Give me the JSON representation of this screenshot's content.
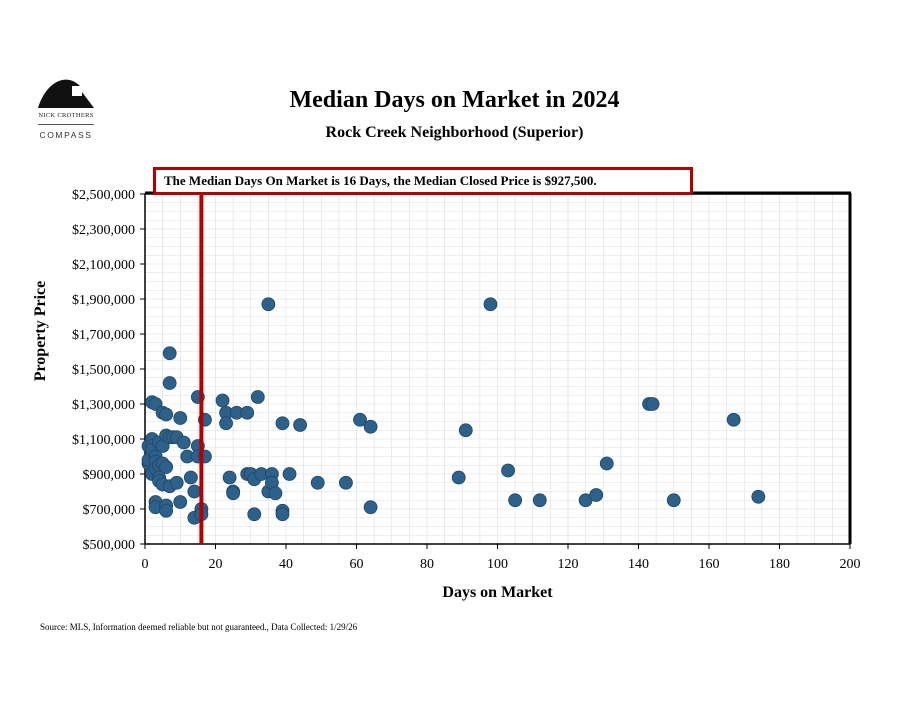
{
  "logo": {
    "name": "NICK CROTHERS",
    "brand": "COMPASS"
  },
  "header": {
    "title": "Median Days on Market in 2024",
    "subtitle": "Rock Creek Neighborhood (Superior)"
  },
  "callout": {
    "text": "The Median Days On Market is 16 Days, the Median Closed Price is $927,500."
  },
  "footer": {
    "source": "Source: MLS, Information deemed reliable but not guaranteed., Data Collected: 1/29/26"
  },
  "colors": {
    "point": "#2e6189",
    "median_line": "#b30000",
    "grid": "#dddddd"
  },
  "chart_data": {
    "type": "scatter",
    "title": "Median Days on Market in 2024",
    "subtitle": "Rock Creek Neighborhood (Superior)",
    "xlabel": "Days on Market",
    "ylabel": "Property Price",
    "xlim": [
      0,
      200
    ],
    "ylim": [
      500000,
      2500000
    ],
    "xticks": [
      0,
      20,
      40,
      60,
      80,
      100,
      120,
      140,
      160,
      180,
      200
    ],
    "yticks": [
      500000,
      700000,
      900000,
      1100000,
      1300000,
      1500000,
      1700000,
      1900000,
      2100000,
      2300000,
      2500000
    ],
    "ytick_labels": [
      "$500,000",
      "$700,000",
      "$900,000",
      "$1,100,000",
      "$1,300,000",
      "$1,500,000",
      "$1,700,000",
      "$1,900,000",
      "$2,100,000",
      "$2,300,000",
      "$2,500,000"
    ],
    "grid": true,
    "median_days": 16,
    "median_price": 927500,
    "points": [
      [
        1,
        960000
      ],
      [
        1,
        1060000
      ],
      [
        1,
        980000
      ],
      [
        2,
        1100000
      ],
      [
        2,
        1060000
      ],
      [
        2,
        1040000
      ],
      [
        2,
        1310000
      ],
      [
        2,
        900000
      ],
      [
        3,
        1300000
      ],
      [
        3,
        1000000
      ],
      [
        3,
        970000
      ],
      [
        3,
        930000
      ],
      [
        3,
        740000
      ],
      [
        3,
        710000
      ],
      [
        4,
        950000
      ],
      [
        4,
        880000
      ],
      [
        4,
        860000
      ],
      [
        4,
        1080000
      ],
      [
        5,
        1250000
      ],
      [
        5,
        1060000
      ],
      [
        5,
        960000
      ],
      [
        5,
        840000
      ],
      [
        6,
        1240000
      ],
      [
        6,
        1120000
      ],
      [
        6,
        940000
      ],
      [
        6,
        720000
      ],
      [
        6,
        690000
      ],
      [
        7,
        1590000
      ],
      [
        7,
        1420000
      ],
      [
        7,
        1110000
      ],
      [
        7,
        830000
      ],
      [
        8,
        1110000
      ],
      [
        9,
        1110000
      ],
      [
        9,
        850000
      ],
      [
        10,
        740000
      ],
      [
        10,
        1220000
      ],
      [
        11,
        1080000
      ],
      [
        12,
        1000000
      ],
      [
        13,
        880000
      ],
      [
        14,
        800000
      ],
      [
        14,
        650000
      ],
      [
        15,
        1340000
      ],
      [
        15,
        1060000
      ],
      [
        15,
        1000000
      ],
      [
        16,
        700000
      ],
      [
        16,
        670000
      ],
      [
        17,
        1210000
      ],
      [
        17,
        1000000
      ],
      [
        22,
        1320000
      ],
      [
        23,
        1250000
      ],
      [
        23,
        1190000
      ],
      [
        24,
        880000
      ],
      [
        25,
        800000
      ],
      [
        25,
        790000
      ],
      [
        26,
        1250000
      ],
      [
        29,
        1250000
      ],
      [
        29,
        900000
      ],
      [
        30,
        900000
      ],
      [
        31,
        870000
      ],
      [
        31,
        670000
      ],
      [
        32,
        1340000
      ],
      [
        33,
        900000
      ],
      [
        35,
        1870000
      ],
      [
        35,
        800000
      ],
      [
        36,
        900000
      ],
      [
        36,
        850000
      ],
      [
        37,
        790000
      ],
      [
        39,
        1190000
      ],
      [
        39,
        690000
      ],
      [
        39,
        670000
      ],
      [
        41,
        900000
      ],
      [
        44,
        1180000
      ],
      [
        49,
        850000
      ],
      [
        57,
        850000
      ],
      [
        61,
        1210000
      ],
      [
        64,
        1170000
      ],
      [
        64,
        710000
      ],
      [
        89,
        880000
      ],
      [
        91,
        1150000
      ],
      [
        98,
        1870000
      ],
      [
        103,
        920000
      ],
      [
        105,
        750000
      ],
      [
        112,
        750000
      ],
      [
        125,
        750000
      ],
      [
        128,
        780000
      ],
      [
        131,
        960000
      ],
      [
        143,
        1300000
      ],
      [
        144,
        1300000
      ],
      [
        150,
        750000
      ],
      [
        167,
        1210000
      ],
      [
        174,
        770000
      ]
    ]
  }
}
